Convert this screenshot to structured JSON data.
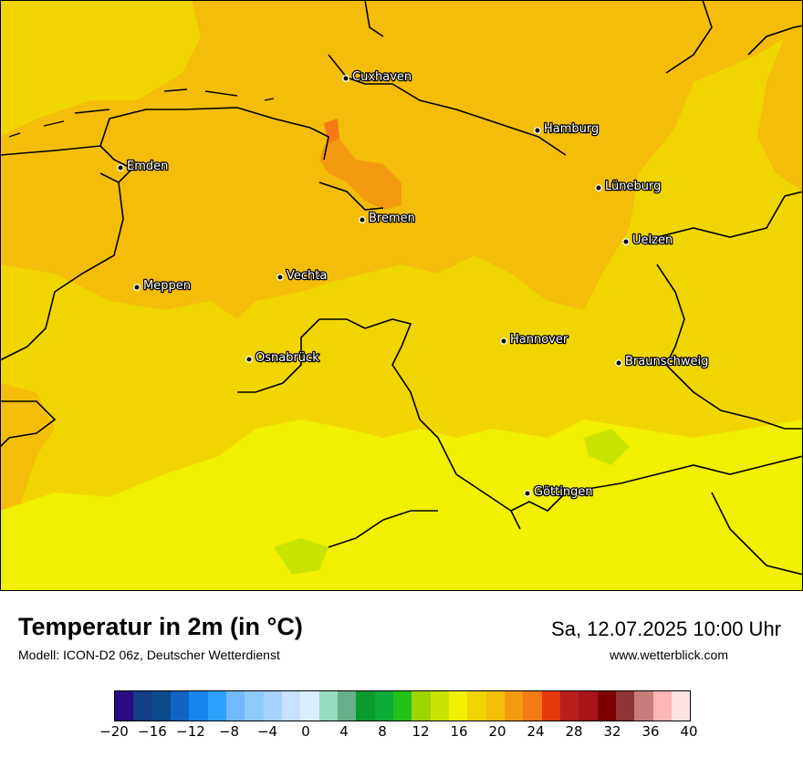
{
  "map": {
    "cities": [
      {
        "name": "Cuxhaven"
      },
      {
        "name": "Hamburg"
      },
      {
        "name": "Emden"
      },
      {
        "name": "Lüneburg"
      },
      {
        "name": "Bremen"
      },
      {
        "name": "Uelzen"
      },
      {
        "name": "Vechta"
      },
      {
        "name": "Meppen"
      },
      {
        "name": "Hannover"
      },
      {
        "name": "Osnabrück"
      },
      {
        "name": "Braunschweig"
      },
      {
        "name": "Göttingen"
      }
    ],
    "colors": {
      "border": "#000000",
      "temp_16_18": "#f0f000",
      "temp_18_20": "#f1d500",
      "temp_20_22": "#f4bd0a",
      "temp_22_24": "#f39a10",
      "temp_24_26": "#f47a14",
      "temp_14_16": "#c8e400"
    }
  },
  "header": {
    "title": "Temperatur in 2m (in °C)",
    "model": "Modell: ICON-D2 06z, Deutscher Wetterdienst",
    "valid_time": "Sa, 12.07.2025 10:00 Uhr",
    "source": "www.wetterblick.com"
  },
  "colorbar": {
    "colors": [
      "#2b0b83",
      "#123f86",
      "#0a4a8c",
      "#1064c2",
      "#1885ee",
      "#2da1fc",
      "#72b8fd",
      "#8ec9fd",
      "#a6d3fd",
      "#c7e2fe",
      "#dceefe",
      "#95dcc0",
      "#66b087",
      "#0b9a30",
      "#0cab3a",
      "#21c21a",
      "#9fd400",
      "#c8e400",
      "#f0f000",
      "#f1d500",
      "#f4bd0a",
      "#f39a10",
      "#f47a14",
      "#e8390a",
      "#b61f1c",
      "#a8151a",
      "#7c0000",
      "#8e3434",
      "#c97b7b",
      "#fdb5b5",
      "#fde2e2"
    ],
    "ticks": [
      "−20",
      "−16",
      "−12",
      "−8",
      "−4",
      "0",
      "4",
      "8",
      "12",
      "16",
      "20",
      "24",
      "28",
      "32",
      "36",
      "40"
    ]
  }
}
